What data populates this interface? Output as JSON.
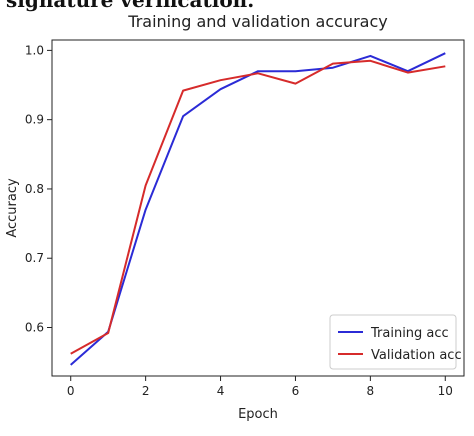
{
  "caption_fragment": "signature verification.",
  "chart_data": {
    "type": "line",
    "title": "Training and validation accuracy",
    "xlabel": "Epoch",
    "ylabel": "Accuracy",
    "xlim": [
      -0.5,
      10.5
    ],
    "ylim": [
      0.53,
      1.015
    ],
    "xticks": [
      0,
      2,
      4,
      6,
      8,
      10
    ],
    "yticks": [
      0.6,
      0.7,
      0.8,
      0.9,
      1.0
    ],
    "ytick_labels": [
      "0.6",
      "0.7",
      "0.8",
      "0.9",
      "1.0"
    ],
    "grid": false,
    "legend_position": "lower-right",
    "x": [
      0,
      1,
      2,
      3,
      4,
      5,
      6,
      7,
      8,
      9,
      10
    ],
    "series": [
      {
        "name": "Training acc",
        "color": "#2b2bd6",
        "values": [
          0.546,
          0.594,
          0.77,
          0.905,
          0.944,
          0.97,
          0.97,
          0.975,
          0.992,
          0.97,
          0.996
        ]
      },
      {
        "name": "Validation acc",
        "color": "#d62b2b",
        "values": [
          0.562,
          0.592,
          0.805,
          0.942,
          0.957,
          0.967,
          0.952,
          0.981,
          0.985,
          0.968,
          0.977
        ]
      }
    ]
  }
}
